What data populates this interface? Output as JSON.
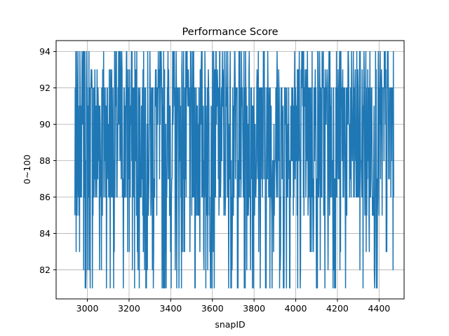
{
  "chart_data": {
    "type": "line",
    "title": "Performance Score",
    "xlabel": "snapID",
    "ylabel": "0~100",
    "xlim": [
      2850,
      4520
    ],
    "ylim": [
      80.4,
      94.6
    ],
    "xticks": [
      3000,
      3200,
      3400,
      3600,
      3800,
      4000,
      4200,
      4400
    ],
    "yticks": [
      82,
      84,
      86,
      88,
      90,
      92,
      94
    ],
    "grid": true,
    "series_color": "#1f77b4",
    "x_range": [
      2940,
      4470
    ],
    "value_levels": [
      81,
      82,
      83,
      84,
      85,
      86,
      87,
      88,
      89,
      90,
      91,
      92,
      93,
      94
    ],
    "series": [
      {
        "x_start": 2940,
        "x_end": 2960,
        "values": [
          85,
          92,
          86,
          94,
          83,
          94,
          90,
          85,
          88,
          92,
          94,
          86,
          90,
          85,
          91,
          83,
          94,
          92,
          86,
          88
        ]
      }
    ]
  }
}
